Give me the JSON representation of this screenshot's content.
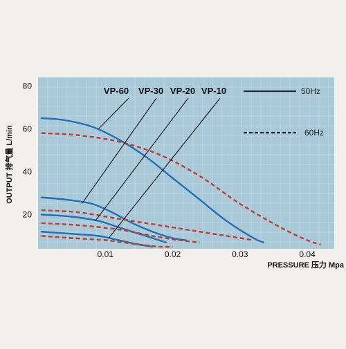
{
  "chart_data": {
    "type": "line",
    "ylabel": "OUTPUT 排气量 L/min",
    "xlabel": "PRESSURE 压力 Mpa",
    "x_ticks": [
      0.01,
      0.02,
      0.03,
      0.04
    ],
    "x_tick_labels": [
      "0.01",
      "0.02",
      "0.03",
      "0.04"
    ],
    "y_ticks": [
      20,
      40,
      60,
      80
    ],
    "y_tick_labels": [
      "20",
      "40",
      "60",
      "80"
    ],
    "xlim": [
      0,
      0.044
    ],
    "ylim": [
      4,
      84
    ],
    "grid": true,
    "legend": [
      {
        "label": "50Hz",
        "style": "solid",
        "color": "#1a2a3a"
      },
      {
        "label": "60Hz",
        "style": "dashed",
        "color": "#1a2a3a"
      }
    ],
    "model_labels": [
      "VP-60",
      "VP-30",
      "VP-20",
      "VP-10"
    ],
    "series": [
      {
        "model": "VP-60",
        "frequency": "50Hz",
        "style": "solid",
        "color": "#1f6fb5",
        "points": [
          [
            0.0005,
            65
          ],
          [
            0.004,
            64
          ],
          [
            0.008,
            61
          ],
          [
            0.012,
            55
          ],
          [
            0.016,
            47
          ],
          [
            0.02,
            37
          ],
          [
            0.024,
            27
          ],
          [
            0.028,
            17
          ],
          [
            0.032,
            9
          ],
          [
            0.0335,
            7
          ]
        ]
      },
      {
        "model": "VP-60",
        "frequency": "60Hz",
        "style": "dashed",
        "color": "#c0392b",
        "points": [
          [
            0.0005,
            58
          ],
          [
            0.006,
            57
          ],
          [
            0.012,
            54
          ],
          [
            0.018,
            48
          ],
          [
            0.024,
            38
          ],
          [
            0.03,
            25
          ],
          [
            0.036,
            14
          ],
          [
            0.04,
            8
          ],
          [
            0.042,
            6
          ]
        ]
      },
      {
        "model": "VP-30",
        "frequency": "50Hz",
        "style": "solid",
        "color": "#1f6fb5",
        "points": [
          [
            0.0005,
            28
          ],
          [
            0.004,
            27
          ],
          [
            0.008,
            25
          ],
          [
            0.011,
            21
          ],
          [
            0.014,
            16
          ],
          [
            0.017,
            12
          ],
          [
            0.02,
            9
          ],
          [
            0.022,
            8
          ]
        ]
      },
      {
        "model": "VP-30",
        "frequency": "60Hz",
        "style": "dashed",
        "color": "#c0392b",
        "points": [
          [
            0.0005,
            22
          ],
          [
            0.006,
            21
          ],
          [
            0.012,
            18
          ],
          [
            0.018,
            15
          ],
          [
            0.024,
            12
          ],
          [
            0.03,
            9
          ],
          [
            0.032,
            8
          ]
        ]
      },
      {
        "model": "VP-20",
        "frequency": "50Hz",
        "style": "solid",
        "color": "#1f6fb5",
        "points": [
          [
            0.0005,
            20
          ],
          [
            0.005,
            19
          ],
          [
            0.009,
            17
          ],
          [
            0.012,
            14
          ],
          [
            0.015,
            11
          ],
          [
            0.018,
            8
          ],
          [
            0.019,
            7
          ]
        ]
      },
      {
        "model": "VP-20",
        "frequency": "60Hz",
        "style": "dashed",
        "color": "#c0392b",
        "points": [
          [
            0.0005,
            16
          ],
          [
            0.006,
            15
          ],
          [
            0.012,
            13
          ],
          [
            0.017,
            10
          ],
          [
            0.021,
            8
          ],
          [
            0.024,
            7
          ]
        ]
      },
      {
        "model": "VP-10",
        "frequency": "50Hz",
        "style": "solid",
        "color": "#1f6fb5",
        "points": [
          [
            0.0005,
            12
          ],
          [
            0.005,
            11
          ],
          [
            0.009,
            10
          ],
          [
            0.012,
            8
          ],
          [
            0.015,
            6
          ],
          [
            0.017,
            5
          ]
        ]
      },
      {
        "model": "VP-10",
        "frequency": "60Hz",
        "style": "dashed",
        "color": "#c0392b",
        "points": [
          [
            0.0005,
            10
          ],
          [
            0.005,
            9
          ],
          [
            0.01,
            8
          ],
          [
            0.015,
            6
          ],
          [
            0.018,
            5
          ],
          [
            0.02,
            5
          ]
        ]
      }
    ],
    "label_pointers": [
      {
        "model": "VP-60",
        "tip": [
          0.009,
          60
        ]
      },
      {
        "model": "VP-30",
        "tip": [
          0.0065,
          25
        ]
      },
      {
        "model": "VP-20",
        "tip": [
          0.0085,
          17
        ]
      },
      {
        "model": "VP-10",
        "tip": [
          0.0105,
          9
        ]
      }
    ]
  }
}
